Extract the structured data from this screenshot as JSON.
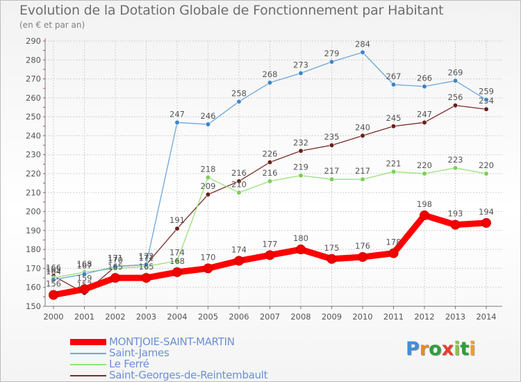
{
  "title": "Evolution de la Dotation Globale de Fonctionnement par Habitant",
  "subtitle": "(en € et par an)",
  "logo_text": "Proxiti",
  "colors": {
    "grid": "#cfcfcf",
    "axis": "#7a7a7a",
    "label": "#555555",
    "tick_mark": "#d04040"
  },
  "chart_data": {
    "type": "line",
    "x": [
      2000,
      2001,
      2002,
      2003,
      2004,
      2005,
      2006,
      2007,
      2008,
      2009,
      2010,
      2011,
      2012,
      2013,
      2014
    ],
    "ylim": [
      150,
      290
    ],
    "yticks": [
      150,
      160,
      170,
      180,
      190,
      200,
      210,
      220,
      230,
      240,
      250,
      260,
      270,
      280,
      290
    ],
    "xlabel": "",
    "ylabel": "",
    "grid": true,
    "legend_position": "bottom-left",
    "series": [
      {
        "name": "Saint-Georges-de-Reintembault",
        "color": "#7a2a2a",
        "marker_color": "#6a1f1f",
        "weight": "thin",
        "values": [
          166,
          157,
          171,
          172,
          191,
          209,
          216,
          226,
          232,
          235,
          240,
          245,
          247,
          256,
          254
        ],
        "labels": [
          "166",
          "157",
          "171",
          "172",
          "191",
          "209",
          "216",
          "226",
          "232",
          "235",
          "240",
          "245",
          "247",
          "256",
          "254"
        ]
      },
      {
        "name": "Le Ferré",
        "color": "#99e07a",
        "marker_color": "#7ccf55",
        "weight": "thin",
        "values": [
          165,
          168,
          170,
          171,
          174,
          218,
          210,
          216,
          219,
          217,
          217,
          221,
          220,
          223,
          220
        ],
        "labels": [
          "165",
          "168",
          "170",
          "171",
          "174",
          "218",
          "210",
          "216",
          "219",
          "217",
          "217",
          "221",
          "220",
          "223",
          "220"
        ]
      },
      {
        "name": "Saint-James",
        "color": "#6ea6d8",
        "marker_color": "#3d86c6",
        "weight": "thin",
        "values": [
          164,
          167,
          171,
          172,
          247,
          246,
          258,
          268,
          273,
          279,
          284,
          267,
          266,
          269,
          259
        ],
        "labels": [
          "164",
          "167",
          "171",
          "172",
          "247",
          "246",
          "258",
          "268",
          "273",
          "279",
          "284",
          "267",
          "266",
          "269",
          "259"
        ]
      },
      {
        "name": "MONTJOIE-SAINT-MARTIN",
        "color": "#ff0000",
        "marker_color": "#ee0000",
        "weight": "thick",
        "values": [
          156,
          159,
          165,
          165,
          168,
          170,
          174,
          177,
          180,
          175,
          176,
          178,
          198,
          193,
          194
        ],
        "labels": [
          "156",
          "159",
          "165",
          "165",
          "168",
          "170",
          "174",
          "177",
          "180",
          "175",
          "176",
          "178",
          "198",
          "193",
          "194"
        ]
      }
    ]
  },
  "legend": [
    {
      "name": "MONTJOIE-SAINT-MARTIN",
      "color": "#ff0000",
      "weight": "thick"
    },
    {
      "name": "Saint-James",
      "color": "#6ea6d8",
      "weight": "thin"
    },
    {
      "name": "Le Ferré",
      "color": "#99e07a",
      "weight": "thin"
    },
    {
      "name": "Saint-Georges-de-Reintembault",
      "color": "#7a2a2a",
      "weight": "thin"
    }
  ]
}
